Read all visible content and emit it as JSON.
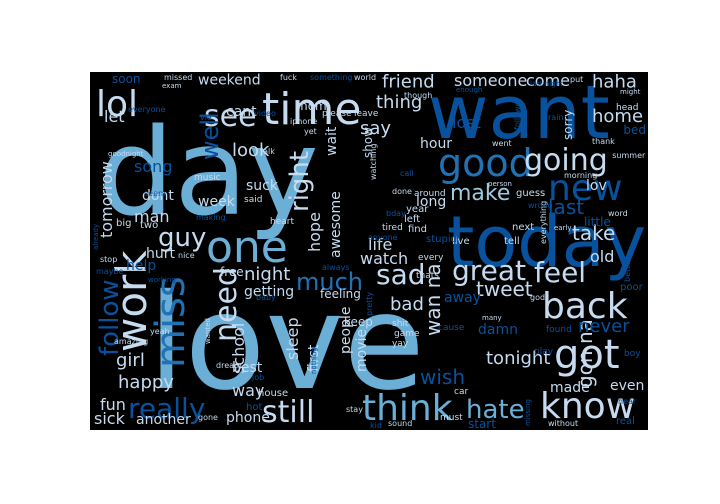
{
  "palette": {
    "background": "#000000",
    "page": "#ffffff",
    "pale": "#c6dbef",
    "light": "#9ecae1",
    "sky": "#6baed6",
    "mid": "#4292c6",
    "blue": "#2171b5",
    "dark": "#08519c",
    "navy": "#08306b"
  },
  "words": [
    {
      "text": "love",
      "color": "sky"
    },
    {
      "text": "day",
      "color": "sky"
    },
    {
      "text": "want",
      "color": "dark"
    },
    {
      "text": "today",
      "color": "dark"
    },
    {
      "text": "time",
      "color": "pale"
    },
    {
      "text": "lol",
      "color": "pale"
    },
    {
      "text": "good",
      "color": "blue"
    },
    {
      "text": "going",
      "color": "pale"
    },
    {
      "text": "new",
      "color": "dark"
    },
    {
      "text": "one",
      "color": "sky"
    },
    {
      "text": "work",
      "color": "pale"
    },
    {
      "text": "miss",
      "color": "blue"
    },
    {
      "text": "back",
      "color": "pale"
    },
    {
      "text": "got",
      "color": "pale"
    },
    {
      "text": "know",
      "color": "pale"
    },
    {
      "text": "think",
      "color": "sky"
    },
    {
      "text": "great",
      "color": "pale"
    },
    {
      "text": "feel",
      "color": "pale"
    },
    {
      "text": "sad",
      "color": "pale"
    },
    {
      "text": "need",
      "color": "pale"
    },
    {
      "text": "see",
      "color": "pale"
    },
    {
      "text": "really",
      "color": "dark"
    },
    {
      "text": "still",
      "color": "pale"
    },
    {
      "text": "much",
      "color": "blue"
    },
    {
      "text": "make",
      "color": "light"
    },
    {
      "text": "hate",
      "color": "sky"
    },
    {
      "text": "follow",
      "color": "dark"
    },
    {
      "text": "guy",
      "color": "pale"
    },
    {
      "text": "well",
      "color": "dark"
    },
    {
      "text": "right",
      "color": "pale"
    },
    {
      "text": "last",
      "color": "dark"
    },
    {
      "text": "take",
      "color": "pale"
    },
    {
      "text": "friend",
      "color": "pale"
    },
    {
      "text": "someone",
      "color": "pale"
    },
    {
      "text": "come",
      "color": "pale"
    },
    {
      "text": "haha",
      "color": "pale"
    },
    {
      "text": "home",
      "color": "pale"
    },
    {
      "text": "thing",
      "color": "pale"
    },
    {
      "text": "say",
      "color": "pale"
    },
    {
      "text": "look",
      "color": "pale"
    },
    {
      "text": "night",
      "color": "pale"
    },
    {
      "text": "tweet",
      "color": "pale"
    },
    {
      "text": "tonight",
      "color": "pale"
    },
    {
      "text": "wan na",
      "color": "pale"
    },
    {
      "text": "gon na",
      "color": "pale"
    },
    {
      "text": "never",
      "color": "dark"
    },
    {
      "text": "school",
      "color": "pale"
    },
    {
      "text": "sleep",
      "color": "pale"
    },
    {
      "text": "wish",
      "color": "dark"
    },
    {
      "text": "happy",
      "color": "pale"
    },
    {
      "text": "girl",
      "color": "pale"
    },
    {
      "text": "fun",
      "color": "pale"
    },
    {
      "text": "sick",
      "color": "pale"
    },
    {
      "text": "watch",
      "color": "pale"
    },
    {
      "text": "life",
      "color": "pale"
    },
    {
      "text": "bad",
      "color": "pale"
    },
    {
      "text": "tomorrow",
      "color": "pale"
    },
    {
      "text": "song",
      "color": "dark"
    },
    {
      "text": "man",
      "color": "pale"
    },
    {
      "text": "dont",
      "color": "pale"
    },
    {
      "text": "hurt",
      "color": "pale"
    },
    {
      "text": "help",
      "color": "dark"
    },
    {
      "text": "weekend",
      "color": "pale"
    },
    {
      "text": "cant",
      "color": "pale"
    },
    {
      "text": "lost",
      "color": "dark"
    },
    {
      "text": "hour",
      "color": "pale"
    },
    {
      "text": "let",
      "color": "pale"
    },
    {
      "text": "week",
      "color": "pale"
    },
    {
      "text": "suck",
      "color": "pale"
    },
    {
      "text": "hope",
      "color": "pale"
    },
    {
      "text": "awesome",
      "color": "pale"
    },
    {
      "text": "long",
      "color": "pale"
    },
    {
      "text": "old",
      "color": "pale"
    },
    {
      "text": "lov",
      "color": "pale"
    },
    {
      "text": "people",
      "color": "pale"
    },
    {
      "text": "first",
      "color": "pale"
    },
    {
      "text": "getting",
      "color": "pale"
    },
    {
      "text": "best",
      "color": "pale"
    },
    {
      "text": "way",
      "color": "pale"
    },
    {
      "text": "phone",
      "color": "pale"
    },
    {
      "text": "another",
      "color": "pale"
    },
    {
      "text": "movie",
      "color": "pale"
    },
    {
      "text": "even",
      "color": "pale"
    },
    {
      "text": "made",
      "color": "pale"
    },
    {
      "text": "away",
      "color": "dark"
    },
    {
      "text": "damn",
      "color": "dark"
    },
    {
      "text": "start",
      "color": "dark"
    },
    {
      "text": "soon",
      "color": "dark"
    },
    {
      "text": "free",
      "color": "pale"
    },
    {
      "text": "feeling",
      "color": "pale"
    },
    {
      "text": "keep",
      "color": "pale"
    },
    {
      "text": "wait",
      "color": "pale"
    },
    {
      "text": "mom",
      "color": "pale"
    },
    {
      "text": "show",
      "color": "pale"
    },
    {
      "text": "sorry",
      "color": "pale"
    },
    {
      "text": "bed",
      "color": "dark"
    },
    {
      "text": "guess",
      "color": "pale"
    },
    {
      "text": "next",
      "color": "pale"
    },
    {
      "text": "tell",
      "color": "pale"
    },
    {
      "text": "live",
      "color": "pale"
    },
    {
      "text": "find",
      "color": "pale"
    },
    {
      "text": "stupid",
      "color": "dark"
    },
    {
      "text": "little",
      "color": "dark"
    },
    {
      "text": "two",
      "color": "pale"
    },
    {
      "text": "big",
      "color": "pale"
    },
    {
      "text": "missed",
      "color": "pale"
    },
    {
      "text": "fuck",
      "color": "pale"
    },
    {
      "text": "something",
      "color": "dark"
    },
    {
      "text": "world",
      "color": "pale"
    },
    {
      "text": "enough",
      "color": "dark"
    },
    {
      "text": "last night",
      "color": "dark"
    },
    {
      "text": "put",
      "color": "pale"
    },
    {
      "text": "might",
      "color": "pale"
    },
    {
      "text": "head",
      "color": "pale"
    },
    {
      "text": "thank",
      "color": "pale"
    },
    {
      "text": "summer",
      "color": "pale"
    },
    {
      "text": "follower",
      "color": "dark"
    },
    {
      "text": "rain",
      "color": "dark"
    },
    {
      "text": "morning",
      "color": "pale"
    },
    {
      "text": "went",
      "color": "pale"
    },
    {
      "text": "person",
      "color": "pale"
    },
    {
      "text": "around",
      "color": "pale"
    },
    {
      "text": "done",
      "color": "pale"
    },
    {
      "text": "tired",
      "color": "pale"
    },
    {
      "text": "anyone",
      "color": "dark"
    },
    {
      "text": "everything",
      "color": "pale"
    },
    {
      "text": "early",
      "color": "pale"
    },
    {
      "text": "word",
      "color": "pale"
    },
    {
      "text": "better",
      "color": "dark"
    },
    {
      "text": "poor",
      "color": "dark"
    },
    {
      "text": "boy",
      "color": "dark"
    },
    {
      "text": "god",
      "color": "pale"
    },
    {
      "text": "found",
      "color": "dark"
    },
    {
      "text": "play",
      "color": "dark"
    },
    {
      "text": "hear",
      "color": "dark"
    },
    {
      "text": "real",
      "color": "dark"
    },
    {
      "text": "without",
      "color": "pale"
    },
    {
      "text": "missing",
      "color": "dark"
    },
    {
      "text": "must",
      "color": "pale"
    },
    {
      "text": "car",
      "color": "pale"
    },
    {
      "text": "sound",
      "color": "pale"
    },
    {
      "text": "kid",
      "color": "dark"
    },
    {
      "text": "stay",
      "color": "pale"
    },
    {
      "text": "gone",
      "color": "pale"
    },
    {
      "text": "hot",
      "color": "dark"
    },
    {
      "text": "house",
      "color": "pale"
    },
    {
      "text": "job",
      "color": "dark"
    },
    {
      "text": "dream",
      "color": "pale"
    },
    {
      "text": "wanted",
      "color": "pale"
    },
    {
      "text": "yeah",
      "color": "pale"
    },
    {
      "text": "amazing",
      "color": "pale"
    },
    {
      "text": "working",
      "color": "dark"
    },
    {
      "text": "maybe",
      "color": "dark"
    },
    {
      "text": "stop",
      "color": "pale"
    },
    {
      "text": "already",
      "color": "dark"
    },
    {
      "text": "seem",
      "color": "dark"
    },
    {
      "text": "goodnight",
      "color": "pale"
    },
    {
      "text": "everyone",
      "color": "dark"
    },
    {
      "text": "exam",
      "color": "pale"
    },
    {
      "text": "via",
      "color": "dark"
    },
    {
      "text": "video",
      "color": "dark"
    },
    {
      "text": "talk",
      "color": "pale"
    },
    {
      "text": "said",
      "color": "pale"
    },
    {
      "text": "music",
      "color": "pale"
    },
    {
      "text": "nice",
      "color": "pale"
    },
    {
      "text": "making",
      "color": "dark"
    },
    {
      "text": "heart",
      "color": "pale"
    },
    {
      "text": "baby",
      "color": "dark"
    },
    {
      "text": "always",
      "color": "dark"
    },
    {
      "text": "pretty",
      "color": "dark"
    },
    {
      "text": "shit",
      "color": "pale"
    },
    {
      "text": "game",
      "color": "pale"
    },
    {
      "text": "yay",
      "color": "pale"
    },
    {
      "text": "cause",
      "color": "dark"
    },
    {
      "text": "many",
      "color": "pale"
    },
    {
      "text": "wrong",
      "color": "dark"
    },
    {
      "text": "every",
      "color": "pale"
    },
    {
      "text": "thats",
      "color": "pale"
    },
    {
      "text": "year",
      "color": "pale"
    },
    {
      "text": "left",
      "color": "pale"
    },
    {
      "text": "though",
      "color": "pale"
    },
    {
      "text": "iphone",
      "color": "pale"
    },
    {
      "text": "yet",
      "color": "pale"
    },
    {
      "text": "please",
      "color": "pale"
    },
    {
      "text": "leave",
      "color": "pale"
    },
    {
      "text": "watching",
      "color": "pale"
    },
    {
      "text": "call",
      "color": "dark"
    },
    {
      "text": "bday",
      "color": "dark"
    },
    {
      "text": "nothing",
      "color": "dark"
    }
  ]
}
